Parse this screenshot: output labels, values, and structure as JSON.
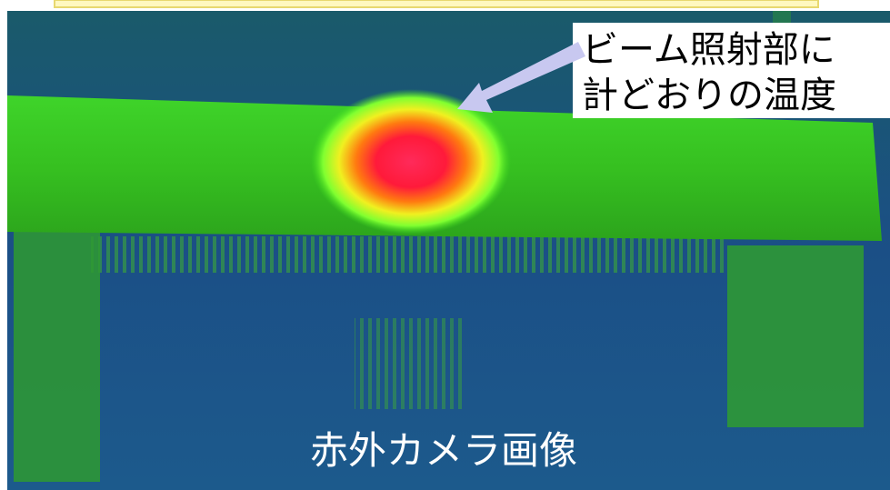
{
  "annotation": {
    "lines": [
      "ビーム照射部に",
      "計どおりの温度"
    ]
  },
  "caption": "赤外カメラ画像"
}
